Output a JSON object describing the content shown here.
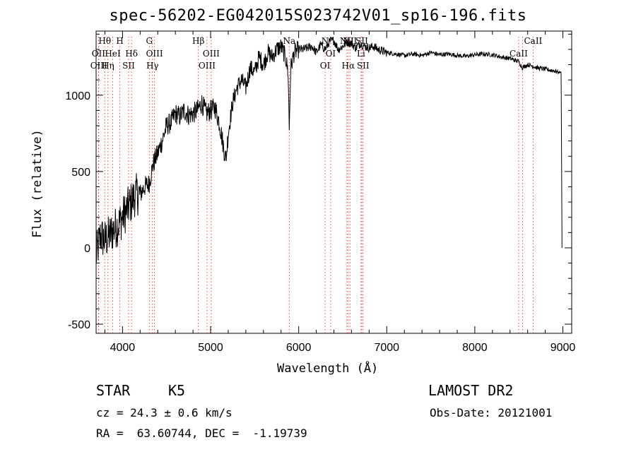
{
  "chart_data": {
    "type": "line",
    "title": "spec-56202-EG042015S023742V01_sp16-196.fits",
    "xlabel": "Wavelength (Å)",
    "ylabel": "Flux (relative)",
    "xlim": [
      3700,
      9100
    ],
    "ylim": [
      -560,
      1420
    ],
    "x_ticks": [
      4000,
      5000,
      6000,
      7000,
      8000,
      9000
    ],
    "y_ticks": [
      -500,
      0,
      500,
      1000
    ],
    "grid": false,
    "series": [
      {
        "x": [
          3700,
          3750,
          3800,
          3850,
          3900,
          3950,
          4000,
          4050,
          4100,
          4150,
          4200,
          4250,
          4300,
          4350,
          4400,
          4450,
          4500,
          4550,
          4600,
          4650,
          4700,
          4750,
          4800,
          4850,
          4900,
          4950,
          5000,
          5050,
          5100,
          5150,
          5175,
          5200,
          5250,
          5300,
          5350,
          5400,
          5450,
          5500,
          5550,
          5600,
          5650,
          5700,
          5750,
          5800,
          5850,
          5880,
          5893,
          5910,
          5950,
          6000,
          6050,
          6100,
          6150,
          6200,
          6250,
          6300,
          6350,
          6400,
          6450,
          6500,
          6550,
          6600,
          6650,
          6700,
          6750,
          6800,
          6850,
          6900,
          6950,
          7000,
          7100,
          7200,
          7300,
          7400,
          7500,
          7600,
          7700,
          7800,
          7900,
          8000,
          8100,
          8200,
          8300,
          8400,
          8500,
          8540,
          8600,
          8662,
          8700,
          8800,
          8900,
          8950,
          8980,
          8990
        ],
        "y": [
          -50,
          80,
          50,
          80,
          120,
          150,
          200,
          250,
          300,
          350,
          350,
          400,
          420,
          550,
          620,
          700,
          800,
          820,
          880,
          860,
          900,
          870,
          880,
          900,
          950,
          880,
          900,
          920,
          820,
          650,
          580,
          750,
          950,
          1050,
          1100,
          1050,
          1180,
          1150,
          1250,
          1200,
          1280,
          1250,
          1300,
          1320,
          1250,
          1150,
          780,
          1180,
          1280,
          1300,
          1300,
          1310,
          1320,
          1280,
          1330,
          1300,
          1350,
          1360,
          1300,
          1320,
          1350,
          1340,
          1310,
          1340,
          1320,
          1310,
          1320,
          1300,
          1290,
          1280,
          1270,
          1260,
          1270,
          1260,
          1280,
          1265,
          1270,
          1260,
          1255,
          1265,
          1270,
          1265,
          1250,
          1240,
          1220,
          1180,
          1200,
          1190,
          1180,
          1170,
          1160,
          1150,
          1150,
          0
        ]
      }
    ]
  },
  "lines_top": [
    {
      "label": "Hθ",
      "x": 3798,
      "row": 0
    },
    {
      "label": "OII",
      "x": 3727,
      "row": 1
    },
    {
      "label": "OIII",
      "x": 3730,
      "row": 2
    },
    {
      "label": "HeI",
      "x": 3889,
      "row": 1
    },
    {
      "label": "Hη",
      "x": 3835,
      "row": 2
    },
    {
      "label": "H",
      "x": 3970,
      "row": 0
    },
    {
      "label": "Hδ",
      "x": 4102,
      "row": 1
    },
    {
      "label": "SII",
      "x": 4069,
      "row": 2
    },
    {
      "label": "G",
      "x": 4304,
      "row": 0
    },
    {
      "label": "OIII",
      "x": 4363,
      "row": 1
    },
    {
      "label": "Hγ",
      "x": 4340,
      "row": 2
    },
    {
      "label": "Hβ",
      "x": 4861,
      "row": 0
    },
    {
      "label": "OIII",
      "x": 5007,
      "row": 1
    },
    {
      "label": "OIII",
      "x": 4959,
      "row": 2
    },
    {
      "label": "Na",
      "x": 5893,
      "row": 0
    },
    {
      "label": "N",
      "x": 6300,
      "row": 0
    },
    {
      "label": "OI",
      "x": 6363,
      "row": 1
    },
    {
      "label": "OI",
      "x": 6300,
      "row": 2
    },
    {
      "label": "NII",
      "x": 6548,
      "row": 0
    },
    {
      "label": "Hα",
      "x": 6563,
      "row": 2
    },
    {
      "label": "SII",
      "x": 6717,
      "row": 0
    },
    {
      "label": "NII",
      "x": 6583,
      "row": 0
    },
    {
      "label": "Li",
      "x": 6708,
      "row": 1
    },
    {
      "label": "SII",
      "x": 6731,
      "row": 2
    },
    {
      "label": "CaII",
      "x": 8662,
      "row": 0
    },
    {
      "label": "CaII",
      "x": 8498,
      "row": 1
    }
  ],
  "marker_lines": [
    3727,
    3730,
    3798,
    3835,
    3889,
    3970,
    4069,
    4102,
    4304,
    4340,
    4363,
    4861,
    4959,
    5007,
    5893,
    6300,
    6363,
    6548,
    6563,
    6583,
    6708,
    6717,
    6731,
    8498,
    8542,
    8662
  ],
  "footer": {
    "object_class": "STAR",
    "subclass": "K5",
    "survey": "LAMOST DR2",
    "redshift": "cz = 24.3 ± 0.6 km/s",
    "obs_date": "Obs-Date: 20121001",
    "coords": "RA =  63.60744, DEC =  -1.19739"
  }
}
